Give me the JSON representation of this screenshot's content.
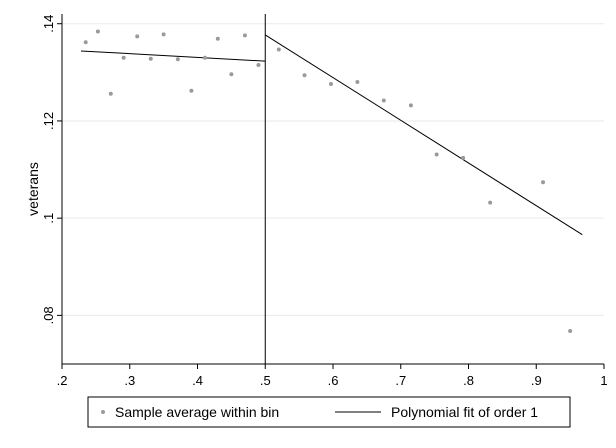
{
  "chart_data": {
    "type": "scatter",
    "title": "",
    "xlabel": "",
    "ylabel": "veterans",
    "xlim": [
      0.2,
      1.0
    ],
    "ylim": [
      0.07,
      0.142
    ],
    "x_ticks": [
      {
        "value": 0.2,
        "label": ".2"
      },
      {
        "value": 0.3,
        "label": ".3"
      },
      {
        "value": 0.4,
        "label": ".4"
      },
      {
        "value": 0.5,
        "label": ".5"
      },
      {
        "value": 0.6,
        "label": ".6"
      },
      {
        "value": 0.7,
        "label": ".7"
      },
      {
        "value": 0.8,
        "label": ".8"
      },
      {
        "value": 0.9,
        "label": ".9"
      },
      {
        "value": 1.0,
        "label": "1"
      }
    ],
    "y_ticks": [
      {
        "value": 0.08,
        "label": ".08"
      },
      {
        "value": 0.1,
        "label": ".1"
      },
      {
        "value": 0.12,
        "label": ".12"
      },
      {
        "value": 0.14,
        "label": ".14"
      }
    ],
    "grid": true,
    "cutoff": 0.5,
    "legend_position": "bottom",
    "series": [
      {
        "name": "Sample average within bin",
        "kind": "scatter",
        "color": "#9a9a9a",
        "points": [
          {
            "x": 0.235,
            "y": 0.1362
          },
          {
            "x": 0.253,
            "y": 0.1384
          },
          {
            "x": 0.272,
            "y": 0.1256
          },
          {
            "x": 0.291,
            "y": 0.133
          },
          {
            "x": 0.311,
            "y": 0.1374
          },
          {
            "x": 0.331,
            "y": 0.1328
          },
          {
            "x": 0.35,
            "y": 0.1378
          },
          {
            "x": 0.371,
            "y": 0.1327
          },
          {
            "x": 0.391,
            "y": 0.1262
          },
          {
            "x": 0.411,
            "y": 0.133
          },
          {
            "x": 0.43,
            "y": 0.1369
          },
          {
            "x": 0.45,
            "y": 0.1296
          },
          {
            "x": 0.47,
            "y": 0.1376
          },
          {
            "x": 0.49,
            "y": 0.1315
          },
          {
            "x": 0.52,
            "y": 0.1347
          },
          {
            "x": 0.558,
            "y": 0.1294
          },
          {
            "x": 0.597,
            "y": 0.1276
          },
          {
            "x": 0.636,
            "y": 0.128
          },
          {
            "x": 0.675,
            "y": 0.1242
          },
          {
            "x": 0.715,
            "y": 0.1232
          },
          {
            "x": 0.753,
            "y": 0.1131
          },
          {
            "x": 0.792,
            "y": 0.1124
          },
          {
            "x": 0.832,
            "y": 0.1032
          },
          {
            "x": 0.91,
            "y": 0.1074
          },
          {
            "x": 0.95,
            "y": 0.0768
          }
        ]
      },
      {
        "name": "Polynomial fit of order 1",
        "kind": "line",
        "color": "#000000",
        "segments": [
          [
            {
              "x": 0.228,
              "y": 0.1344
            },
            {
              "x": 0.5,
              "y": 0.1323
            }
          ],
          [
            {
              "x": 0.5,
              "y": 0.1377
            },
            {
              "x": 0.968,
              "y": 0.0966
            }
          ]
        ]
      }
    ]
  }
}
